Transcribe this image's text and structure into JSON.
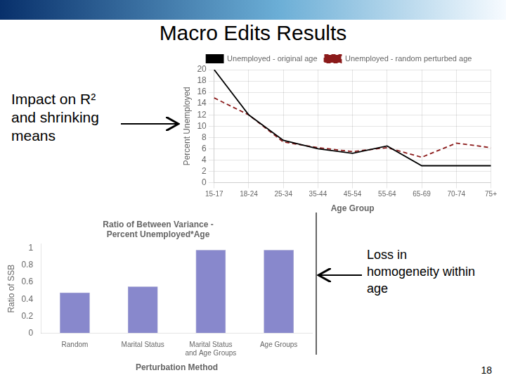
{
  "title": "Macro Edits Results",
  "annotations": [
    "Impact on R²\nand shrinking\nmeans",
    "Loss in\nhomogeneity within\nage",
    "18"
  ],
  "chart_data": [
    {
      "type": "line",
      "categories": [
        "15-17",
        "18-24",
        "25-34",
        "35-44",
        "45-54",
        "55-64",
        "65-69",
        "70-74",
        "75+"
      ],
      "series": [
        {
          "name": "Unemployed - original age",
          "color": "#000000",
          "line_style": "solid",
          "values": [
            20,
            12,
            7.5,
            6.0,
            5.2,
            6.5,
            3.0,
            3.0,
            3.0
          ]
        },
        {
          "name": "Unemployed - random perturbed age",
          "color": "#8b1a1a",
          "line_style": "dashed",
          "values": [
            15,
            12,
            7.2,
            6.2,
            5.5,
            6.2,
            4.5,
            7.0,
            6.2
          ]
        }
      ],
      "xlabel": "Age Group",
      "ylabel": "Percent Unemployed",
      "ylim": [
        0,
        20
      ],
      "yticks": [
        0,
        2,
        4,
        6,
        8,
        10,
        12,
        14,
        16,
        18,
        20
      ],
      "grid": true,
      "legend": "top"
    },
    {
      "type": "bar",
      "title": "Ratio of Between Variance -\nPercent Unemployed*Age",
      "categories": [
        "Random",
        "Marital Status",
        "Marital Status\nand Age Groups",
        "Age Groups"
      ],
      "values": [
        0.48,
        0.55,
        0.98,
        0.98
      ],
      "color": "#8888cc",
      "xlabel": "Perturbation Method",
      "ylabel": "Ratio of SSB",
      "ylim": [
        0,
        1.05
      ],
      "yticks": [
        0,
        0.2,
        0.4,
        0.6,
        0.8,
        1
      ],
      "grid": false
    }
  ]
}
